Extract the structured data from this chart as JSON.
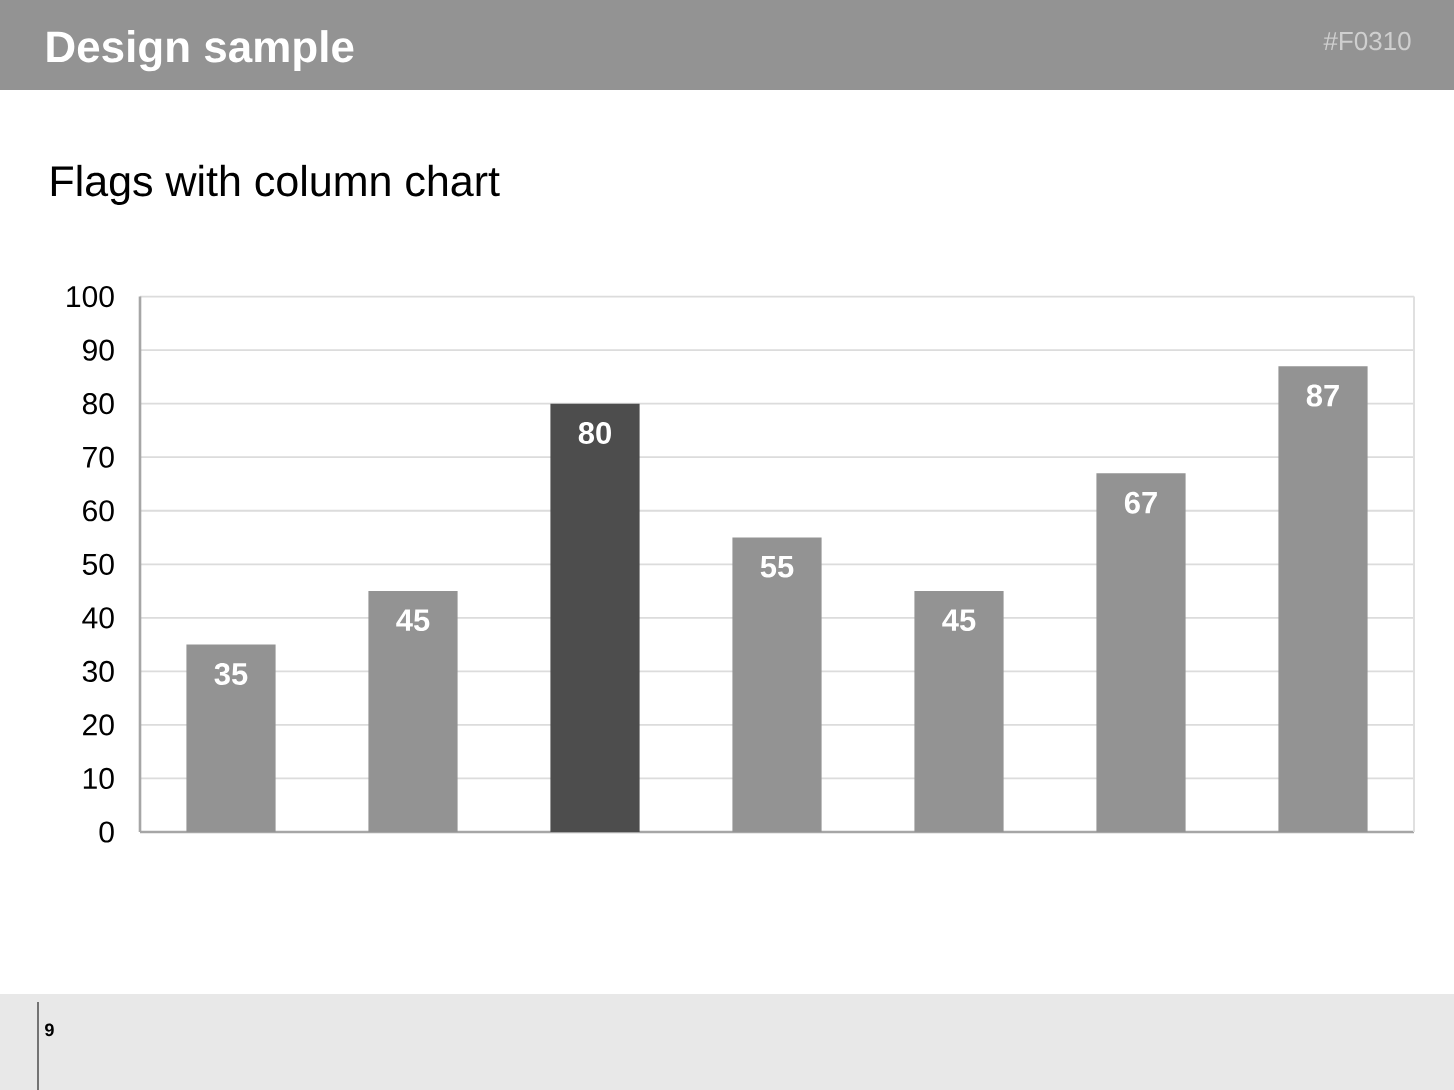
{
  "chart_data": {
    "type": "bar",
    "title": "Flags with column chart",
    "annotations": [
      "Design sample",
      "#F0310",
      "9"
    ],
    "categories": [
      null,
      null,
      null,
      null,
      null,
      null,
      null
    ],
    "values": [
      35,
      45,
      80,
      55,
      45,
      67,
      87
    ],
    "colors": [
      "#939393",
      "#939393",
      "#4d4d4d",
      "#939393",
      "#939393",
      "#939393",
      "#939393"
    ],
    "ylim": [
      0,
      100
    ],
    "yticks": [
      0,
      10,
      20,
      30,
      40,
      50,
      60,
      70,
      80,
      90,
      100
    ],
    "grid": "y",
    "data_labels": true
  }
}
